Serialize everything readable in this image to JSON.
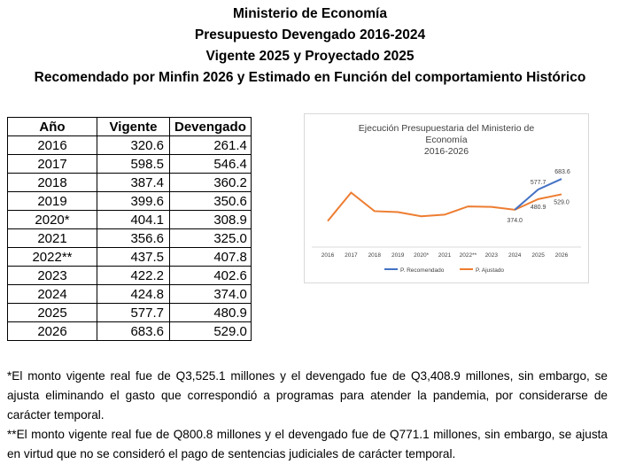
{
  "titles": [
    "Ministerio de Economía",
    "Presupuesto Devengado 2016-2024",
    "Vigente 2025 y Proyectado 2025",
    "Recomendado por Minfin 2026 y Estimado en Función del comportamiento Histórico"
  ],
  "table": {
    "headers": [
      "Año",
      "Vigente",
      "Devengado"
    ],
    "rows": [
      [
        "2016",
        "320.6",
        "261.4"
      ],
      [
        "2017",
        "598.5",
        "546.4"
      ],
      [
        "2018",
        "387.4",
        "360.2"
      ],
      [
        "2019",
        "399.6",
        "350.6"
      ],
      [
        "2020*",
        "404.1",
        "308.9"
      ],
      [
        "2021",
        "356.6",
        "325.0"
      ],
      [
        "2022**",
        "437.5",
        "407.8"
      ],
      [
        "2023",
        "422.2",
        "402.6"
      ],
      [
        "2024",
        "424.8",
        "374.0"
      ],
      [
        "2025",
        "577.7",
        "480.9"
      ],
      [
        "2026",
        "683.6",
        "529.0"
      ]
    ]
  },
  "chart_data": {
    "type": "line",
    "title": [
      "Ejecución Presupuestaria del Ministerio de",
      "Economía",
      "2016-2026"
    ],
    "categories": [
      "2016",
      "2017",
      "2018",
      "2019",
      "2020*",
      "2021",
      "2022**",
      "2023",
      "2024",
      "2025",
      "2026"
    ],
    "ylim": [
      0,
      800
    ],
    "legend": "bottom",
    "series": [
      {
        "name": "P. Recomendado",
        "color": "#4472C4",
        "values": [
          null,
          null,
          null,
          null,
          null,
          null,
          null,
          null,
          374.0,
          577.7,
          683.6
        ],
        "labels": [
          null,
          null,
          null,
          null,
          null,
          null,
          null,
          null,
          null,
          "577.7",
          "683.6"
        ]
      },
      {
        "name": "P. Ajustado",
        "color": "#ED7D31",
        "values": [
          261.4,
          546.4,
          360.2,
          350.6,
          308.9,
          325.0,
          407.8,
          402.6,
          374.0,
          480.9,
          529.0
        ],
        "labels": [
          null,
          null,
          null,
          null,
          null,
          null,
          null,
          null,
          "374.0",
          "480.9",
          "529.0"
        ]
      }
    ]
  },
  "notes": [
    "*El monto vigente real fue de Q3,525.1 millones y el devengado fue de Q3,408.9 millones, sin embargo, se ajusta eliminando el gasto que correspondió a programas para atender la pandemia, por considerarse de carácter temporal.",
    "**El monto vigente real fue de Q800.8 millones y el devengado fue de Q771.1 millones, sin embargo, se ajusta en virtud que no se consideró el pago de sentencias judiciales de carácter temporal."
  ]
}
